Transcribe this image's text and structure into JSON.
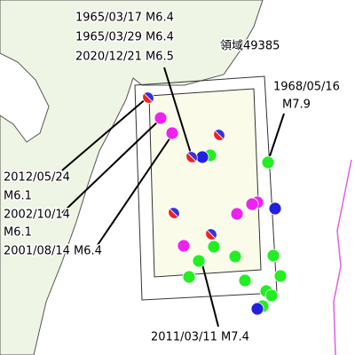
{
  "annotations": [
    {
      "lines": [
        "1965/03/17 M6.4",
        "1965/03/29 M6.4",
        "2020/12/21 M6.5"
      ]
    },
    {
      "lines": [
        "1968/05/16",
        "M7.9"
      ]
    },
    {
      "lines": [
        "2012/05/24",
        "M6.1"
      ]
    },
    {
      "lines": [
        "2002/10/14",
        "M6.1"
      ]
    },
    {
      "lines": [
        "2001/08/14 M6.4"
      ]
    },
    {
      "lines": [
        "2011/03/11 M7.4"
      ]
    }
  ],
  "region_label": "領域49385"
}
